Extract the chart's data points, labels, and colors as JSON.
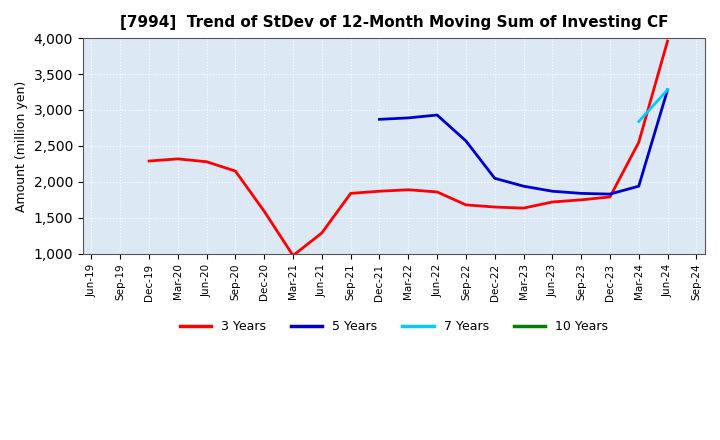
{
  "title": "[7994]  Trend of StDev of 12-Month Moving Sum of Investing CF",
  "ylabel": "Amount (million yen)",
  "ylim": [
    1000,
    4000
  ],
  "yticks": [
    1000,
    1500,
    2000,
    2500,
    3000,
    3500,
    4000
  ],
  "plot_bg_color": "#dce9f5",
  "fig_bg_color": "#ffffff",
  "grid_color": "#ffffff",
  "series": {
    "3 Years": {
      "color": "#ff0000",
      "x": [
        "Jun-19",
        "Sep-19",
        "Dec-19",
        "Mar-20",
        "Jun-20",
        "Sep-20",
        "Dec-20",
        "Mar-21",
        "Jun-21",
        "Sep-21",
        "Dec-21",
        "Mar-22",
        "Jun-22",
        "Sep-22",
        "Dec-22",
        "Mar-23",
        "Jun-23",
        "Sep-23",
        "Dec-23",
        "Mar-24",
        "Jun-24"
      ],
      "y": [
        null,
        null,
        2290,
        2320,
        2280,
        2150,
        1590,
        975,
        1290,
        1840,
        1870,
        1890,
        1860,
        1680,
        1650,
        1635,
        1720,
        1750,
        1790,
        2550,
        3960
      ]
    },
    "5 Years": {
      "color": "#0000cc",
      "x": [
        "Jun-19",
        "Sep-19",
        "Dec-19",
        "Mar-20",
        "Jun-20",
        "Sep-20",
        "Dec-20",
        "Mar-21",
        "Jun-21",
        "Sep-21",
        "Dec-21",
        "Mar-22",
        "Jun-22",
        "Sep-22",
        "Dec-22",
        "Mar-23",
        "Jun-23",
        "Sep-23",
        "Dec-23",
        "Mar-24",
        "Jun-24"
      ],
      "y": [
        null,
        null,
        null,
        null,
        null,
        null,
        null,
        null,
        null,
        null,
        2870,
        2890,
        2930,
        2570,
        2050,
        1940,
        1870,
        1840,
        1830,
        1940,
        3280
      ]
    },
    "7 Years": {
      "color": "#00ccff",
      "x": [
        "Jun-19",
        "Sep-19",
        "Dec-19",
        "Mar-20",
        "Jun-20",
        "Sep-20",
        "Dec-20",
        "Mar-21",
        "Jun-21",
        "Sep-21",
        "Dec-21",
        "Mar-22",
        "Jun-22",
        "Sep-22",
        "Dec-22",
        "Mar-23",
        "Jun-23",
        "Sep-23",
        "Dec-23",
        "Mar-24",
        "Jun-24"
      ],
      "y": [
        null,
        null,
        null,
        null,
        null,
        null,
        null,
        null,
        null,
        null,
        null,
        null,
        null,
        null,
        null,
        null,
        null,
        null,
        null,
        2840,
        3280
      ]
    },
    "10 Years": {
      "color": "#008000",
      "x": [
        "Jun-19",
        "Sep-19",
        "Dec-19",
        "Mar-20",
        "Jun-20",
        "Sep-20",
        "Dec-20",
        "Mar-21",
        "Jun-21",
        "Sep-21",
        "Dec-21",
        "Mar-22",
        "Jun-22",
        "Sep-22",
        "Dec-22",
        "Mar-23",
        "Jun-23",
        "Sep-23",
        "Dec-23",
        "Mar-24",
        "Jun-24"
      ],
      "y": [
        null,
        null,
        null,
        null,
        null,
        null,
        null,
        null,
        null,
        null,
        null,
        null,
        null,
        null,
        null,
        null,
        null,
        null,
        null,
        null,
        null
      ]
    }
  },
  "xtick_labels": [
    "Jun-19",
    "Sep-19",
    "Dec-19",
    "Mar-20",
    "Jun-20",
    "Sep-20",
    "Dec-20",
    "Mar-21",
    "Jun-21",
    "Sep-21",
    "Dec-21",
    "Mar-22",
    "Jun-22",
    "Sep-22",
    "Dec-22",
    "Mar-23",
    "Jun-23",
    "Sep-23",
    "Dec-23",
    "Mar-24",
    "Jun-24",
    "Sep-24"
  ],
  "legend_labels": [
    "3 Years",
    "5 Years",
    "7 Years",
    "10 Years"
  ],
  "legend_colors": [
    "#ff0000",
    "#0000cc",
    "#00ccff",
    "#008000"
  ]
}
